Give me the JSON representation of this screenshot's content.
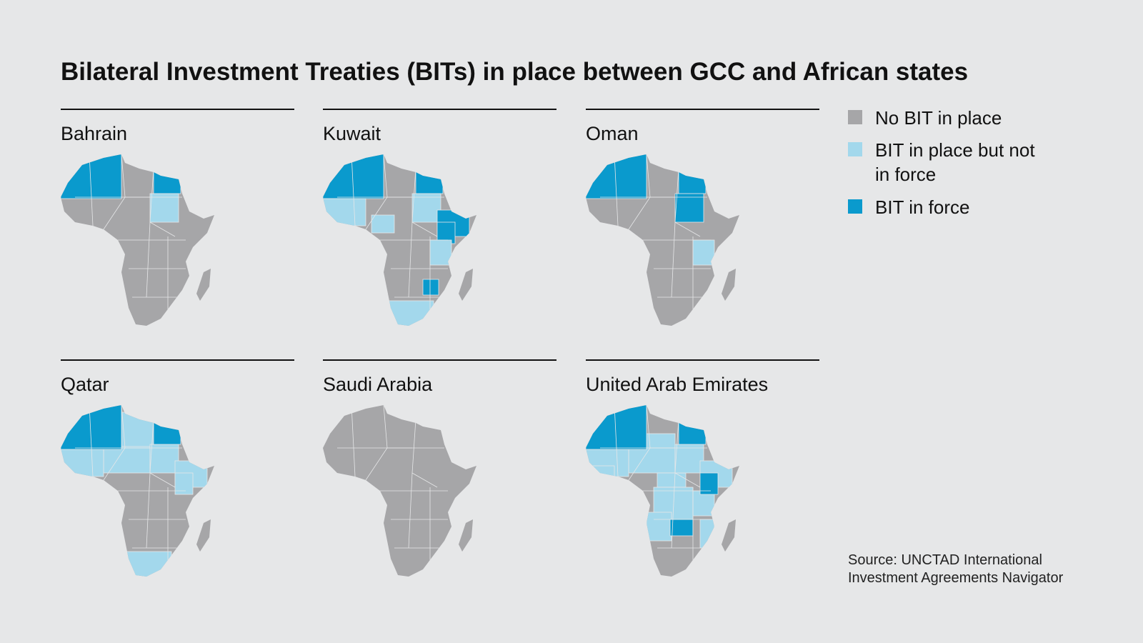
{
  "title": "Bilateral Investment Treaties (BITs) in place between GCC and African states",
  "panels": [
    "Bahrain",
    "Kuwait",
    "Oman",
    "Qatar",
    "Saudi Arabia",
    "United Arab Emirates"
  ],
  "legend": [
    {
      "label": "No BIT in place",
      "color": "#a6a6a8"
    },
    {
      "label": "BIT in place but not in force",
      "color": "#a3d8ec"
    },
    {
      "label": "BIT in force",
      "color": "#0a9acd"
    }
  ],
  "source": "Source: UNCTAD International Investment Agreements Navigator"
}
